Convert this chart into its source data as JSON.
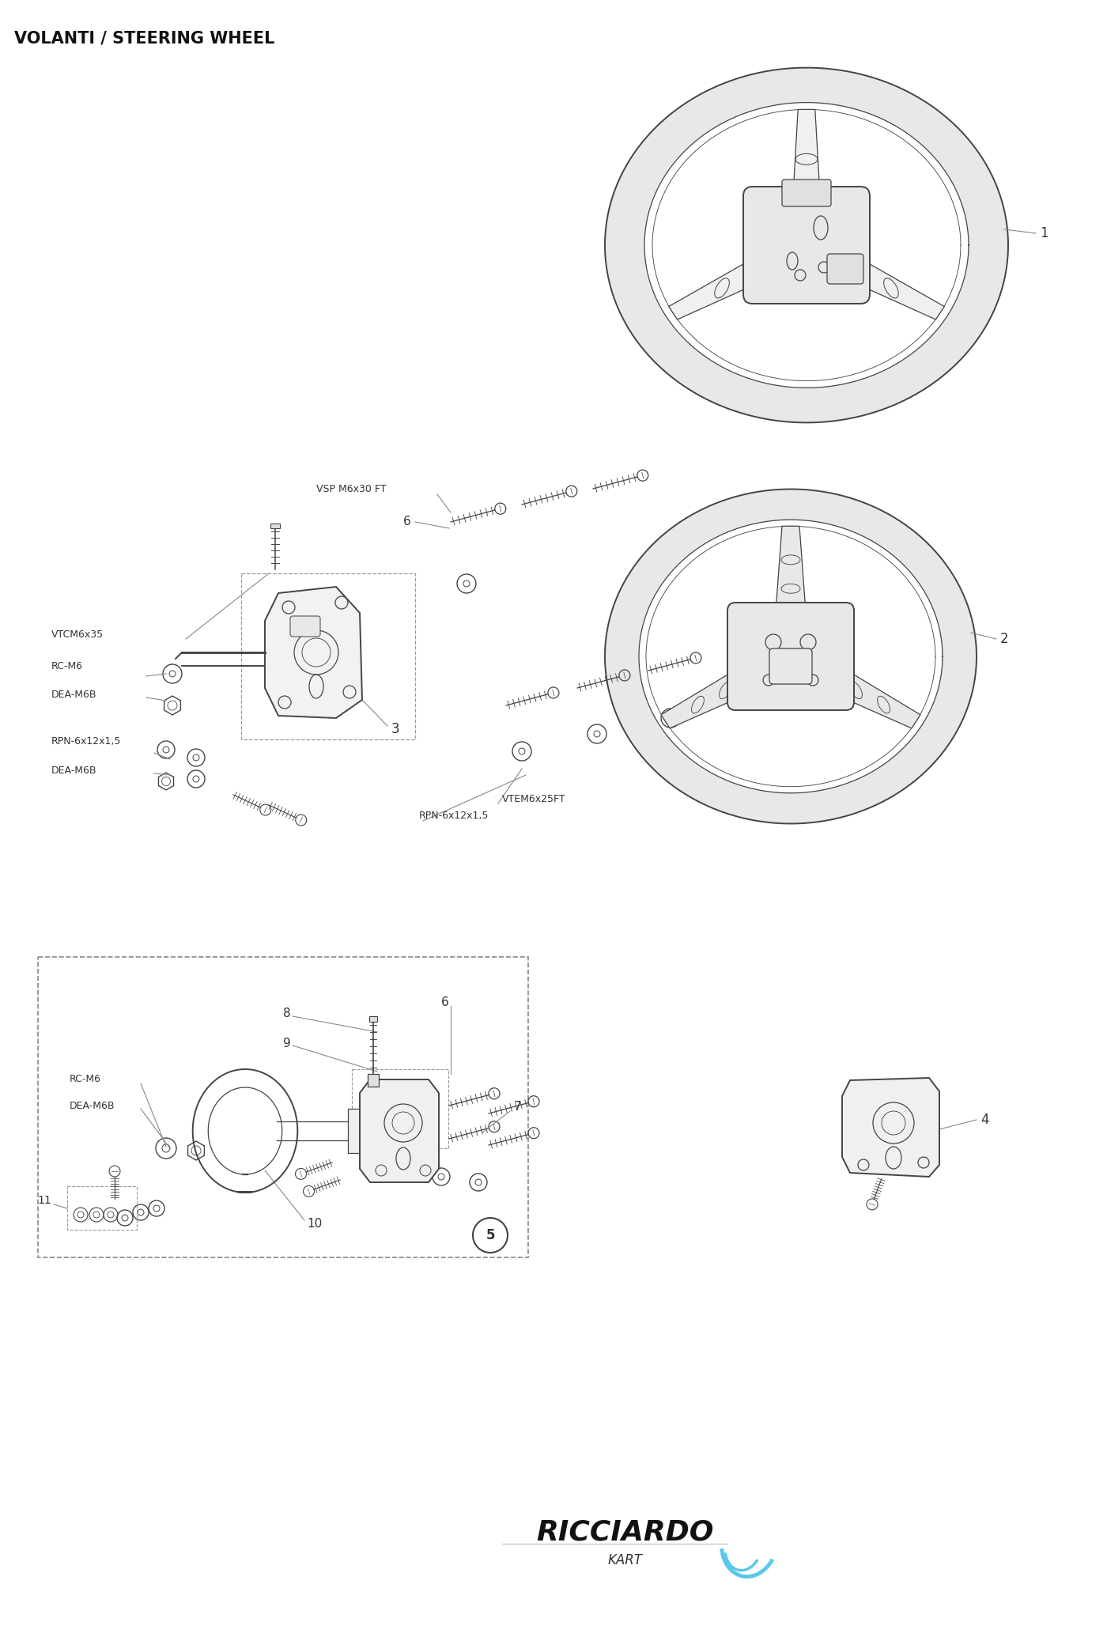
{
  "title": "VOLANTI / STEERING WHEEL",
  "title_fontsize": 15,
  "background_color": "#ffffff",
  "line_color": "#444444",
  "text_color": "#333333",
  "logo_text": "RICCIARDO",
  "logo_sub": "KART",
  "logo_color": "#1a1a1a",
  "logo_accent": "#5bc8e8"
}
